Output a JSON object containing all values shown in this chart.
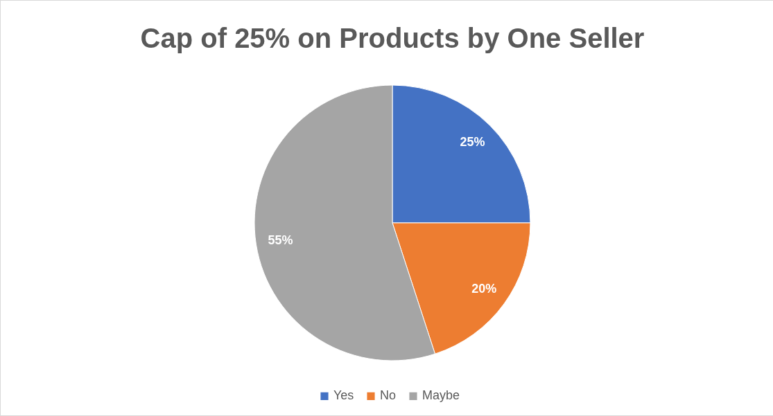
{
  "chart_data": {
    "type": "pie",
    "title": "Cap of 25% on Products by One Seller",
    "categories": [
      "Yes",
      "No",
      "Maybe"
    ],
    "values": [
      25,
      20,
      55
    ],
    "colors": [
      "#4472c4",
      "#ed7d31",
      "#a5a5a5"
    ],
    "value_labels": [
      "25%",
      "20%",
      "55%"
    ],
    "legend": "bottom"
  }
}
